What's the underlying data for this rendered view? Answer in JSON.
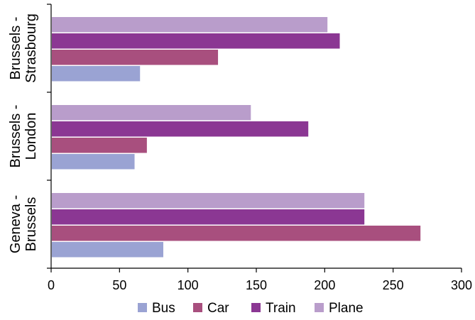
{
  "chart_data": {
    "type": "bar",
    "orientation": "horizontal",
    "categories": [
      [
        "Brussels -",
        "Strasbourg"
      ],
      [
        "Brussels -",
        "London"
      ],
      [
        "Geneva -",
        "Brussels"
      ]
    ],
    "series": [
      {
        "name": "Bus",
        "color": "#9AA3D3",
        "values": [
          65,
          61,
          82
        ]
      },
      {
        "name": "Car",
        "color": "#A84F7E",
        "values": [
          122,
          70,
          270
        ]
      },
      {
        "name": "Train",
        "color": "#8B3793",
        "values": [
          211,
          188,
          229
        ]
      },
      {
        "name": "Plane",
        "color": "#B99DCB",
        "values": [
          202,
          146,
          229
        ]
      }
    ],
    "xlim": [
      0,
      300
    ],
    "xticks": [
      "0",
      "50",
      "100",
      "150",
      "200",
      "250",
      "300"
    ],
    "grid": false,
    "legend_position": "bottom"
  }
}
